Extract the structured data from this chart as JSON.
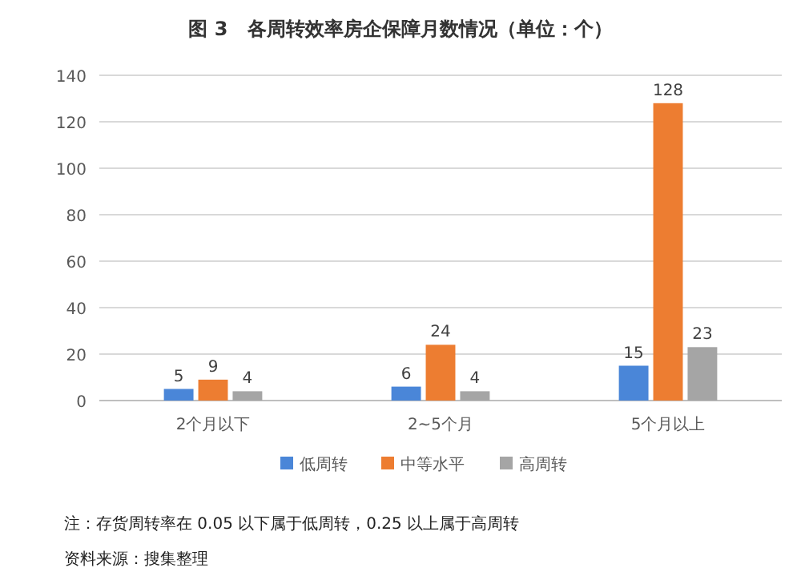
{
  "chart_data": {
    "type": "bar",
    "title": "图 3　各周转效率房企保障月数情况（单位：个）",
    "categories": [
      "2个月以下",
      "2~5个月",
      "5个月以上"
    ],
    "series": [
      {
        "name": "低周转",
        "color": "#4a86d8",
        "values": [
          5,
          6,
          15
        ]
      },
      {
        "name": "中等水平",
        "color": "#ed7d31",
        "values": [
          9,
          24,
          128
        ]
      },
      {
        "name": "高周转",
        "color": "#a5a5a5",
        "values": [
          4,
          4,
          23
        ]
      }
    ],
    "ylim": [
      0,
      140
    ],
    "yticks": [
      0,
      20,
      40,
      60,
      80,
      100,
      120,
      140
    ],
    "grid": "y",
    "legend": "bottom",
    "data_labels": true,
    "annotations": [
      "注：存货周转率在 0.05 以下属于低周转，0.25 以上属于高周转",
      "资料来源：搜集整理"
    ]
  }
}
